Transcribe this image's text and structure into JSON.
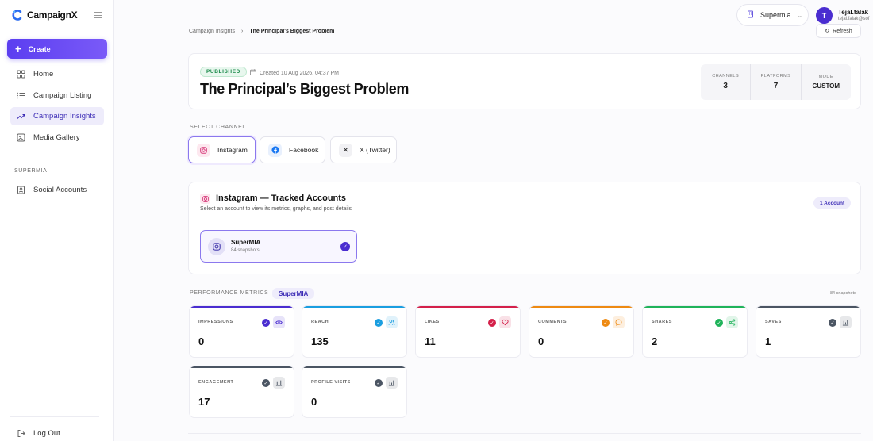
{
  "brand": {
    "name": "CampaignX"
  },
  "sidebar": {
    "create_label": "Create",
    "items": [
      {
        "label": "Home",
        "icon": "home-icon"
      },
      {
        "label": "Campaign Listing",
        "icon": "list-icon"
      },
      {
        "label": "Campaign Insights",
        "icon": "trend-icon",
        "active": true
      },
      {
        "label": "Media Gallery",
        "icon": "image-icon"
      }
    ],
    "section_title": "SUPERMIA",
    "section_items": [
      {
        "label": "Social Accounts",
        "icon": "id-card-icon"
      }
    ],
    "logout_label": "Log Out"
  },
  "topbar": {
    "workspace": "Supermia",
    "user": {
      "initial": "T",
      "name": "Tejal.falak",
      "email": "tejal.falak@sof"
    }
  },
  "breadcrumb": {
    "parent": "Campaign Insights",
    "separator": "›",
    "current": "The Principal's Biggest Problem"
  },
  "refresh_label": "Refresh",
  "campaign": {
    "status": "PUBLISHED",
    "created": "Created 10 Aug 2026, 04:37 PM",
    "title": "The Principal’s Biggest Problem",
    "stats": [
      {
        "label": "CHANNELS",
        "value": "3"
      },
      {
        "label": "PLATFORMS",
        "value": "7"
      },
      {
        "label": "MODE",
        "value": "CUSTOM"
      }
    ]
  },
  "select_channel_label": "SELECT CHANNEL",
  "channels": [
    {
      "label": "Instagram",
      "icon": "instagram-icon",
      "active": true
    },
    {
      "label": "Facebook",
      "icon": "facebook-icon"
    },
    {
      "label": "X (Twitter)",
      "icon": "x-icon"
    }
  ],
  "tracked": {
    "title": "Instagram — Tracked Accounts",
    "subtitle": "Select an account to view its metrics, graphs, and post details",
    "count_badge": "1 Account",
    "account": {
      "name": "SuperMIA",
      "snapshots": "84 snapshots"
    }
  },
  "performance": {
    "label": "PERFORMANCE METRICS —",
    "account_pill": "SuperMIA",
    "snapshots": "84 snapshots",
    "metrics": [
      {
        "label": "IMPRESSIONS",
        "value": "0",
        "color": "#4a2dd0",
        "icon": "eye-icon"
      },
      {
        "label": "REACH",
        "value": "135",
        "color": "#1a9ee0",
        "icon": "users-icon"
      },
      {
        "label": "LIKES",
        "value": "11",
        "color": "#d4204a",
        "icon": "heart-icon"
      },
      {
        "label": "COMMENTS",
        "value": "0",
        "color": "#ee8a12",
        "icon": "comment-icon"
      },
      {
        "label": "SHARES",
        "value": "2",
        "color": "#1fb35a",
        "icon": "share-icon"
      },
      {
        "label": "SAVES",
        "value": "1",
        "color": "#4b5563",
        "icon": "bar-chart-icon"
      },
      {
        "label": "ENGAGEMENT",
        "value": "17",
        "color": "#4b5563",
        "icon": "bar-chart-icon"
      },
      {
        "label": "PROFILE VISITS",
        "value": "0",
        "color": "#4b5563",
        "icon": "bar-chart-icon"
      }
    ]
  }
}
